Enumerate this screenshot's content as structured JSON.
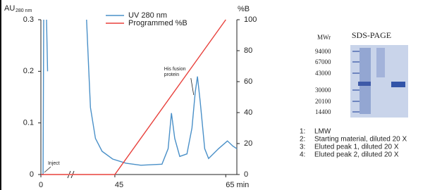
{
  "chart_data": {
    "type": "line",
    "y_label": "AU",
    "y_label_sub": "280 nm",
    "y2_label": "%B",
    "xlim": [
      0,
      67
    ],
    "xbreak": [
      4,
      37
    ],
    "xticks": [
      0,
      45,
      {
        "value": 65,
        "label": "65 min"
      }
    ],
    "ylim": [
      0,
      0.3
    ],
    "yticks": [
      0,
      0.1,
      0.2,
      0.3
    ],
    "y2lim": [
      0,
      100
    ],
    "y2ticks": [
      0,
      20,
      40,
      60,
      80,
      100
    ],
    "legend": "top",
    "series": [
      {
        "name": "UV 280 nm",
        "color": "#4a90c8",
        "x": [
          0,
          0.3,
          0.38,
          2,
          0.76,
          0.9,
          3,
          39.9,
          40.3,
          40.6,
          41.5,
          42.7,
          44.6,
          47,
          49.7,
          53.5,
          54.6,
          55.2,
          55.8,
          56.7,
          58.0,
          58.9,
          59.5,
          59.9,
          60.4,
          61.2,
          61.9,
          63.7,
          65.3,
          66.3,
          67
        ],
        "values": [
          0,
          0,
          0.3,
          null,
          0.3,
          0.2,
          null,
          0.3,
          0.2,
          0.13,
          0.07,
          0.045,
          0.03,
          0.022,
          0.018,
          0.02,
          0.05,
          0.119,
          0.07,
          0.035,
          0.04,
          0.09,
          0.16,
          0.19,
          0.14,
          0.05,
          0.031,
          0.05,
          0.065,
          0.055,
          0.05
        ]
      },
      {
        "name": "Programmed %B",
        "color": "#e8413c",
        "axis": "y2",
        "x": [
          0,
          45,
          65
        ],
        "values": [
          0,
          0,
          100
        ]
      }
    ],
    "annotations": [
      {
        "text": [
          "Inject"
        ],
        "x": 0.38,
        "y": 0
      },
      {
        "text": [
          "His fusion",
          "protein"
        ],
        "x": 59.6,
        "y": 0.15
      }
    ]
  },
  "gel": {
    "title": "SDS-PAGE",
    "mw_header": "MWr",
    "mw_labels": [
      "94000",
      "67000",
      "43000",
      "30000",
      "20100",
      "14400"
    ],
    "lanes": [
      {
        "number": "1:",
        "label": "LMW"
      },
      {
        "number": "2:",
        "label": "Starting material, diluted 20 X"
      },
      {
        "number": "3:",
        "label": "Eluted peak 1, diluted 20 X"
      },
      {
        "number": "4:",
        "label": "Eluted peak 2, diluted 20 X"
      }
    ]
  }
}
